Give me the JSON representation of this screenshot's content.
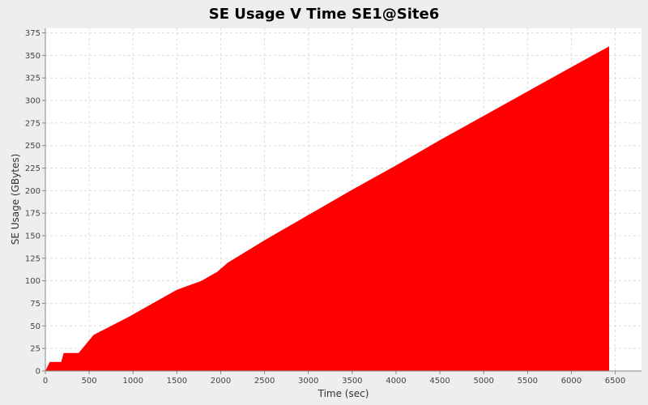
{
  "chart_data": {
    "type": "area",
    "title": "SE Usage V Time SE1@Site6",
    "xlabel": "Time (sec)",
    "ylabel": "SE Usage (GBytes)",
    "xlim": [
      0,
      6800
    ],
    "ylim": [
      0,
      380
    ],
    "xticks": [
      0,
      500,
      1000,
      1500,
      2000,
      2500,
      3000,
      3500,
      4000,
      4500,
      5000,
      5500,
      6000,
      6500
    ],
    "yticks": [
      0,
      25,
      50,
      75,
      100,
      125,
      150,
      175,
      200,
      225,
      250,
      275,
      300,
      325,
      350,
      375
    ],
    "grid": true,
    "legend": "none",
    "series": [
      {
        "color": "#ff0000",
        "points": [
          [
            0,
            0
          ],
          [
            50,
            10
          ],
          [
            180,
            10
          ],
          [
            210,
            20
          ],
          [
            380,
            20
          ],
          [
            550,
            40
          ],
          [
            950,
            60
          ],
          [
            1500,
            90
          ],
          [
            1780,
            100
          ],
          [
            1960,
            110
          ],
          [
            2080,
            120
          ],
          [
            2500,
            145
          ],
          [
            3000,
            173
          ],
          [
            3500,
            201
          ],
          [
            4000,
            228
          ],
          [
            4500,
            256
          ],
          [
            5000,
            283
          ],
          [
            5500,
            310
          ],
          [
            6000,
            337
          ],
          [
            6430,
            360
          ],
          [
            6430,
            0
          ]
        ]
      }
    ]
  }
}
